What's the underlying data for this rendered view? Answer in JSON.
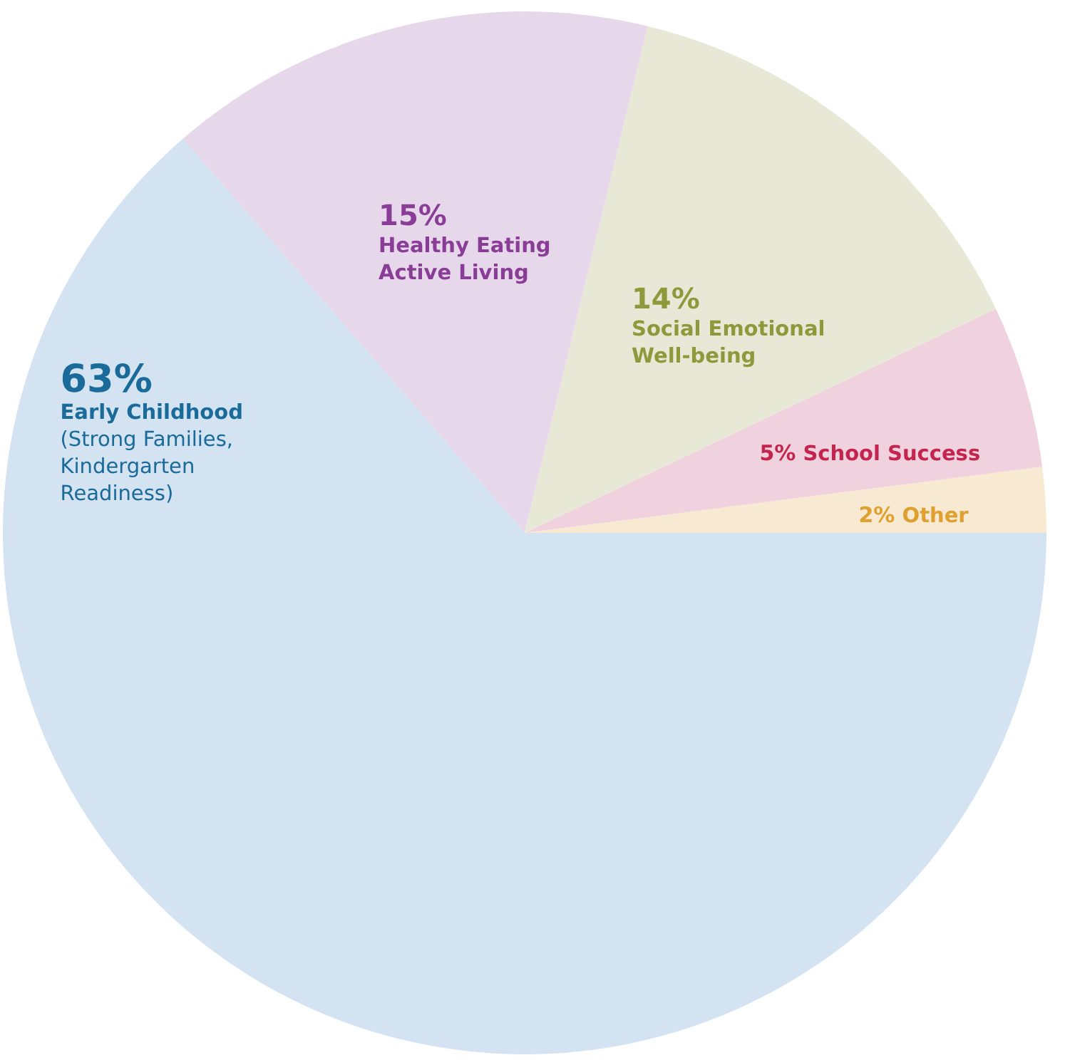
{
  "chart_data": {
    "type": "pie",
    "categories": [
      "Other",
      "School Success",
      "Social Emotional Well-being",
      "Healthy Eating Active Living",
      "Early Childhood"
    ],
    "values": [
      2,
      5,
      14,
      15,
      63
    ],
    "value_labels": [
      "2%",
      "5%",
      "14%",
      "15%",
      "63%"
    ],
    "colors": [
      "#f8ead2",
      "#f0d2de",
      "#e8e8d6",
      "#e6d8ea",
      "#d3e3f1"
    ],
    "annotations": [
      {
        "text": "(Strong Families, Kindergarten Readiness)",
        "x": "Early Childhood"
      }
    ]
  }
}
